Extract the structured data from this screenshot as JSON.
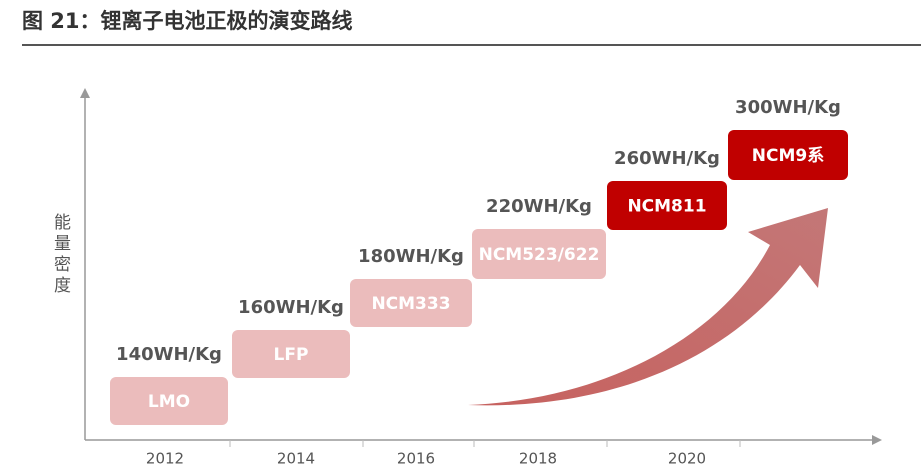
{
  "title": "图 21：锂离子电池正极的演变路线",
  "y_axis_label": "能量密度",
  "steps": [
    {
      "material": "LMO",
      "energy": "140WH/Kg",
      "color": "#ebbcbc"
    },
    {
      "material": "LFP",
      "energy": "160WH/Kg",
      "color": "#ebbcbc"
    },
    {
      "material": "NCM333",
      "energy": "180WH/Kg",
      "color": "#ebbcbc"
    },
    {
      "material": "NCM523/622",
      "energy": "220WH/Kg",
      "color": "#ebbcbc"
    },
    {
      "material": "NCM811",
      "energy": "260WH/Kg",
      "color": "#c00000"
    },
    {
      "material": "NCM9系",
      "energy": "300WH/Kg",
      "color": "#c00000"
    }
  ],
  "years": [
    "2012",
    "2014",
    "2016",
    "2018",
    "2020"
  ]
}
